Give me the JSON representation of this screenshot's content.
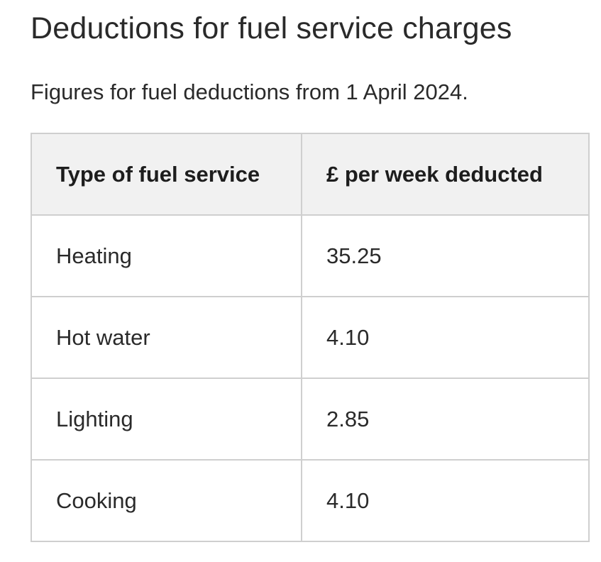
{
  "heading": "Deductions for fuel service charges",
  "intro": "Figures for fuel deductions from 1 April 2024.",
  "table": {
    "headers": [
      "Type of fuel service",
      "£ per week deducted"
    ],
    "rows": [
      [
        "Heating",
        "35.25"
      ],
      [
        "Hot water",
        "4.10"
      ],
      [
        "Lighting",
        "2.85"
      ],
      [
        "Cooking",
        "4.10"
      ]
    ]
  }
}
